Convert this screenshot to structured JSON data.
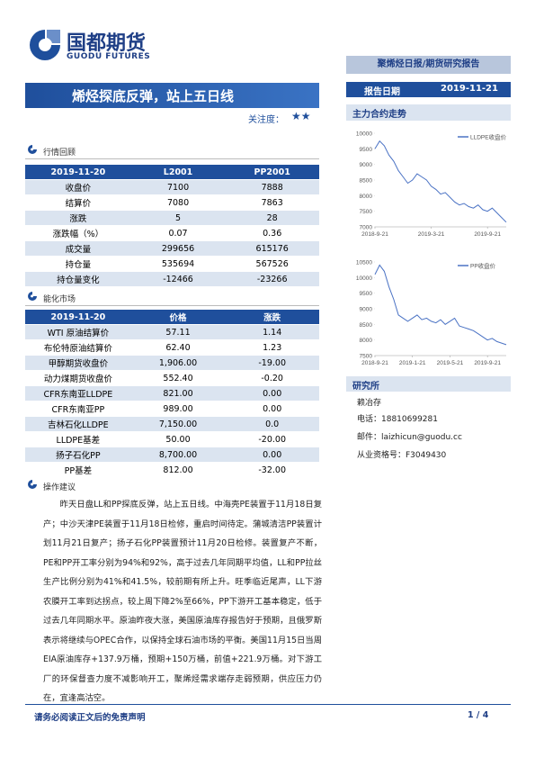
{
  "header": {
    "logo": "国都期货",
    "logo_en": "GUODU FUTURES",
    "report_type": "聚烯烃日报/期货研究报告",
    "date_label": "报告日期",
    "date": "2019-11-21"
  },
  "title": {
    "text": "烯烃探底反弹，站上五日线",
    "attention_label": "关注度：",
    "attention_stars": "★★"
  },
  "market_review": {
    "heading": "行情回顾",
    "table": {
      "header": [
        "2019-11-20",
        "L2001",
        "PP2001"
      ],
      "rows": [
        [
          "收盘价",
          "7100",
          "7888"
        ],
        [
          "结算价",
          "7080",
          "7863"
        ],
        [
          "涨跌",
          "5",
          "28"
        ],
        [
          "涨跌幅（%）",
          "0.07",
          "0.36"
        ],
        [
          "成交量",
          "299656",
          "615176"
        ],
        [
          "持仓量",
          "535694",
          "567526"
        ],
        [
          "持仓量变化",
          "-12466",
          "-23266"
        ]
      ]
    }
  },
  "energy_market": {
    "heading": "能化市场",
    "table": {
      "header": [
        "2019-11-20",
        "价格",
        "涨跌"
      ],
      "rows": [
        [
          "WTI 原油结算价",
          "57.11",
          "1.14"
        ],
        [
          "布伦特原油结算价",
          "62.40",
          "1.23"
        ],
        [
          "甲醇期货收盘价",
          "1,906.00",
          "-19.00"
        ],
        [
          "动力煤期货收盘价",
          "552.40",
          "-0.20"
        ],
        [
          "CFR东南亚LLDPE",
          "821.00",
          "0.00"
        ],
        [
          "CFR东南亚PP",
          "989.00",
          "0.00"
        ],
        [
          "吉林石化LLDPE",
          "7,150.00",
          "0.0"
        ],
        [
          "LLDPE基差",
          "50.00",
          "-20.00"
        ],
        [
          "扬子石化PP",
          "8,700.00",
          "0.00"
        ],
        [
          "PP基差",
          "812.00",
          "-32.00"
        ]
      ]
    }
  },
  "advice": {
    "heading": "操作建议",
    "text": "昨天日盘LL和PP探底反弹，站上五日线。中海壳PE装置于11月18日复产；中沙天津PE装置于11月18日检修，重启时间待定。蒲城清洁PP装置计划11月21日复产；扬子石化PP装置预计11月20日检修。装置复产不断，PE和PP开工率分别为94%和92%，高于过去几年同期平均值，LL和PP拉丝生产比例分别为41%和41.5%，较前期有所上升。旺季临近尾声，LL下游农膜开工率到达拐点，较上周下降2%至66%，PP下游开工基本稳定，低于过去几年同期水平。原油昨夜大涨，美国原油库存报告好于预期，且俄罗斯表示将继续与OPEC合作，以保持全球石油市场的平衡。美国11月15日当周EIA原油库存+137.9万桶，预期+150万桶，前值+221.9万桶。对下游工厂的环保督查力度不减影响开工，聚烯烃需求端存走弱预期，供应压力仍在，宜逢高沽空。"
  },
  "sidebar": {
    "trend_heading": "主力合约走势",
    "institute_heading": "研究所",
    "analyst": "赖冶存",
    "phone": "电话：18810699281",
    "email": "邮件：laizhicun@guodu.cc",
    "license": "从业资格号：F3049430"
  },
  "footer": {
    "disclaimer": "请务必阅读正文后的免责声明",
    "page": "1 / 4"
  },
  "chart_data": [
    {
      "type": "line",
      "categories": [
        "2018-9-21",
        null,
        null,
        null,
        null,
        null,
        null,
        null,
        null,
        null,
        null,
        null,
        "2019-3-21",
        null,
        null,
        null,
        null,
        null,
        null,
        null,
        null,
        null,
        null,
        null,
        "2019-9-21",
        null,
        null,
        null,
        null
      ],
      "series": [
        {
          "name": "LLDPE收盘价",
          "color": "#4a72c4",
          "values": [
            9500,
            9750,
            9600,
            9300,
            9100,
            8800,
            8600,
            8400,
            8500,
            8700,
            8600,
            8500,
            8300,
            8200,
            8050,
            8100,
            7950,
            7800,
            7700,
            7750,
            7650,
            7600,
            7700,
            7550,
            7500,
            7600,
            7450,
            7300,
            7150
          ]
        }
      ],
      "ylim": [
        7000,
        10000
      ],
      "yticks": [
        7000,
        7500,
        8000,
        8500,
        9000,
        9500,
        10000
      ],
      "grid": false,
      "legend": "top-right"
    },
    {
      "type": "line",
      "categories": [
        "2018-9-21",
        null,
        null,
        null,
        null,
        null,
        null,
        null,
        "2019-1-21",
        null,
        null,
        null,
        null,
        null,
        null,
        null,
        "2019-5-21",
        null,
        null,
        null,
        null,
        null,
        null,
        null,
        "2019-9-21",
        null,
        null,
        null,
        null
      ],
      "series": [
        {
          "name": "PP收盘价",
          "color": "#4a72c4",
          "values": [
            10100,
            10400,
            10200,
            9700,
            9300,
            8800,
            8700,
            8600,
            8700,
            8800,
            8650,
            8700,
            8600,
            8550,
            8650,
            8500,
            8600,
            8700,
            8450,
            8400,
            8350,
            8300,
            8200,
            8100,
            8000,
            8050,
            7950,
            7900,
            7850
          ]
        }
      ],
      "ylim": [
        7500,
        10500
      ],
      "yticks": [
        7500,
        8000,
        8500,
        9000,
        9500,
        10000,
        10500
      ],
      "grid": false,
      "legend": "top-right"
    }
  ]
}
